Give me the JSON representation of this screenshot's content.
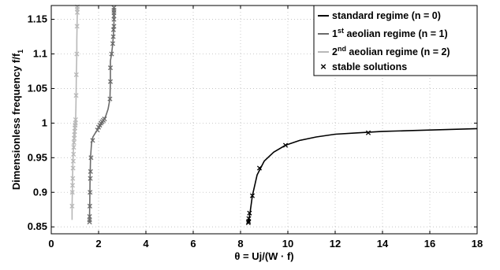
{
  "chart_data": {
    "type": "line",
    "xlabel": "θ = Uj/(W · f)",
    "ylabel": {
      "main": "Dimensionless frequency f/f",
      "sub": "1"
    },
    "xlim": [
      0,
      18
    ],
    "ylim": [
      0.84,
      1.17
    ],
    "x_ticks": [
      0,
      2,
      4,
      6,
      8,
      10,
      12,
      14,
      16,
      18
    ],
    "y_ticks": [
      0.85,
      0.9,
      0.95,
      1,
      1.05,
      1.1,
      1.15
    ],
    "y_tick_labels": [
      "0.85",
      "0.9",
      "0.95",
      "1",
      "1.05",
      "1.1",
      "1.15"
    ],
    "grid": true,
    "legend_position": "top-right",
    "legend": [
      {
        "pre": "standard regime (n = 0)",
        "sup": "",
        "post": ""
      },
      {
        "pre": "1",
        "sup": "st",
        "post": " aeolian regime (n = 1)"
      },
      {
        "pre": "2",
        "sup": "nd",
        "post": " aeolian regime (n = 2)"
      },
      {
        "pre": "stable solutions",
        "sup": "",
        "post": ""
      }
    ],
    "series": [
      {
        "name": "standard regime (n = 0)",
        "color": "#000000",
        "x": [
          8.33,
          8.35,
          8.4,
          8.5,
          8.7,
          9.0,
          9.4,
          9.9,
          10.5,
          11.2,
          12.0,
          13.0,
          14.0,
          15.0,
          16.0,
          17.0,
          18.0
        ],
        "y": [
          0.856,
          0.86,
          0.87,
          0.895,
          0.925,
          0.945,
          0.958,
          0.968,
          0.975,
          0.98,
          0.984,
          0.986,
          0.988,
          0.989,
          0.99,
          0.991,
          0.992
        ]
      },
      {
        "name": "1st aeolian regime (n = 1)",
        "color": "#6b6b6b",
        "x": [
          1.62,
          1.62,
          1.63,
          1.64,
          1.66,
          1.7,
          1.76,
          1.85,
          1.95,
          2.05,
          2.15,
          2.22,
          2.3,
          2.4,
          2.48,
          2.5,
          2.5,
          2.5,
          2.55,
          2.6,
          2.63,
          2.65,
          2.65,
          2.65,
          2.65
        ],
        "y": [
          0.857,
          0.87,
          0.89,
          0.92,
          0.95,
          0.97,
          0.98,
          0.985,
          0.99,
          0.995,
          1.0,
          1.005,
          1.01,
          1.02,
          1.035,
          1.06,
          1.08,
          1.09,
          1.1,
          1.115,
          1.13,
          1.145,
          1.155,
          1.16,
          1.167
        ]
      },
      {
        "name": "2nd aeolian regime (n = 2)",
        "color": "#b8b8b8",
        "x": [
          0.88,
          0.88,
          0.89,
          0.9,
          0.92,
          0.95,
          0.98,
          1.0,
          1.02,
          1.03,
          1.04,
          1.05,
          1.06,
          1.08,
          1.08,
          1.09,
          1.1,
          1.1
        ],
        "y": [
          0.86,
          0.88,
          0.9,
          0.92,
          0.95,
          0.97,
          0.985,
          0.995,
          1.0,
          1.005,
          1.02,
          1.04,
          1.07,
          1.1,
          1.12,
          1.14,
          1.16,
          1.168
        ]
      }
    ],
    "stable_solutions": [
      {
        "series": 0,
        "x": [
          8.33,
          8.34,
          8.35,
          8.38,
          8.5,
          8.8,
          9.9,
          13.4
        ],
        "y": [
          0.856,
          0.858,
          0.862,
          0.87,
          0.895,
          0.935,
          0.968,
          0.986
        ]
      },
      {
        "series": 1,
        "x": [
          1.62,
          1.62,
          1.62,
          1.63,
          1.64,
          1.65,
          1.66,
          1.68,
          1.75,
          1.95,
          2.0,
          2.05,
          2.1,
          2.15,
          2.2,
          2.25,
          2.48,
          2.5,
          2.5,
          2.55,
          2.6,
          2.62,
          2.63,
          2.65,
          2.65,
          2.65,
          2.65,
          2.65,
          2.65
        ],
        "y": [
          0.857,
          0.86,
          0.865,
          0.88,
          0.9,
          0.92,
          0.93,
          0.95,
          0.975,
          0.99,
          0.994,
          0.997,
          1.0,
          1.002,
          1.004,
          1.006,
          1.035,
          1.06,
          1.08,
          1.1,
          1.115,
          1.125,
          1.135,
          1.14,
          1.15,
          1.155,
          1.16,
          1.163,
          1.167
        ]
      },
      {
        "series": 2,
        "x": [
          0.88,
          0.89,
          0.9,
          0.91,
          0.92,
          0.93,
          0.94,
          0.95,
          0.96,
          0.97,
          0.98,
          0.99,
          1.0,
          1.01,
          1.02,
          1.03,
          1.05,
          1.06,
          1.08,
          1.09,
          1.1,
          1.1,
          1.1
        ],
        "y": [
          0.88,
          0.9,
          0.91,
          0.92,
          0.935,
          0.945,
          0.955,
          0.965,
          0.972,
          0.978,
          0.983,
          0.988,
          0.993,
          0.997,
          1.0,
          1.005,
          1.04,
          1.07,
          1.1,
          1.14,
          1.16,
          1.165,
          1.168
        ]
      }
    ]
  }
}
